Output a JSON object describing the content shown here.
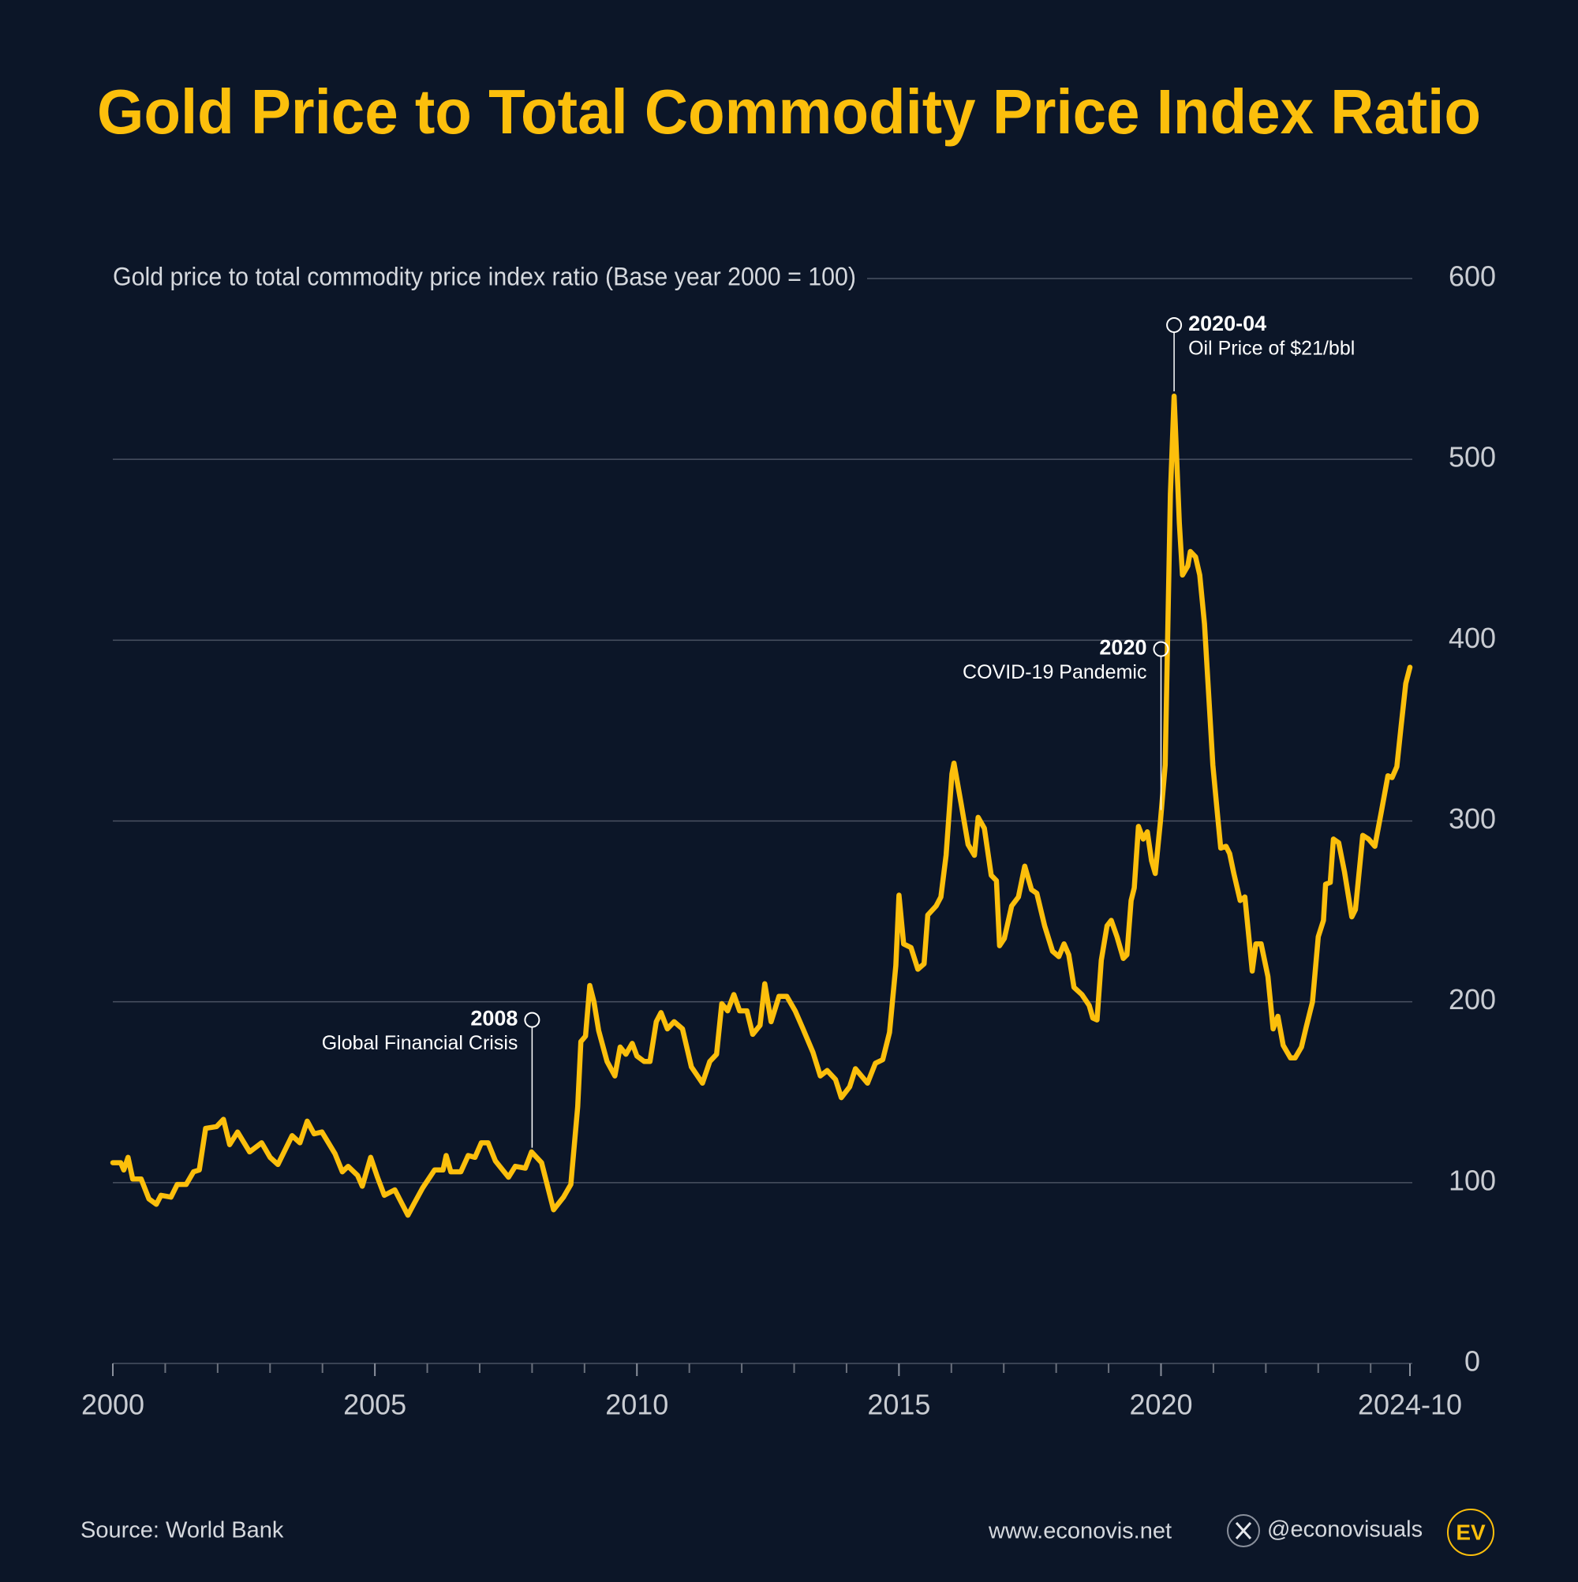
{
  "chart_data": {
    "type": "line",
    "title": "Gold Price to Total Commodity Price Index Ratio",
    "subtitle": "Gold price to total commodity price index ratio (Base year 2000 = 100)",
    "color": "#fcbf0c",
    "grid": true,
    "xlim": [
      2000,
      2024.75
    ],
    "xticks": [
      2000,
      2005,
      2010,
      2015,
      2020,
      {
        "value": 2024.75,
        "label": "2024-10"
      }
    ],
    "xminorticks": [
      2001,
      2002,
      2003,
      2004,
      2006,
      2007,
      2008,
      2009,
      2011,
      2012,
      2013,
      2014,
      2016,
      2017,
      2018,
      2019,
      2021,
      2022,
      2023,
      2024
    ],
    "ylim": [
      0,
      600
    ],
    "yticks": [
      0,
      100,
      200,
      300,
      400,
      500,
      600
    ],
    "x": [
      2000.0,
      2000.15,
      2000.21,
      2000.29,
      2000.38,
      2000.54,
      2000.69,
      2000.83,
      2000.92,
      2001.11,
      2001.23,
      2001.4,
      2001.54,
      2001.65,
      2001.77,
      2001.98,
      2002.11,
      2002.23,
      2002.38,
      2002.61,
      2002.84,
      2003.0,
      2003.15,
      2003.42,
      2003.57,
      2003.71,
      2003.84,
      2003.99,
      2004.24,
      2004.38,
      2004.49,
      2004.67,
      2004.76,
      2004.92,
      2005.05,
      2005.18,
      2005.38,
      2005.63,
      2005.76,
      2005.91,
      2006.14,
      2006.3,
      2006.36,
      2006.45,
      2006.64,
      2006.78,
      2006.91,
      2007.03,
      2007.16,
      2007.3,
      2007.55,
      2007.68,
      2007.87,
      2007.99,
      2008.18,
      2008.41,
      2008.6,
      2008.74,
      2008.87,
      2008.93,
      2009.02,
      2009.1,
      2009.18,
      2009.27,
      2009.43,
      2009.58,
      2009.68,
      2009.79,
      2009.91,
      2010.0,
      2010.14,
      2010.25,
      2010.37,
      2010.46,
      2010.58,
      2010.71,
      2010.87,
      2011.04,
      2011.25,
      2011.39,
      2011.52,
      2011.62,
      2011.73,
      2011.85,
      2011.96,
      2012.1,
      2012.21,
      2012.35,
      2012.44,
      2012.56,
      2012.71,
      2012.86,
      2013.02,
      2013.17,
      2013.36,
      2013.5,
      2013.63,
      2013.79,
      2013.9,
      2014.06,
      2014.17,
      2014.4,
      2014.55,
      2014.69,
      2014.82,
      2014.94,
      2015.0,
      2015.09,
      2015.23,
      2015.36,
      2015.48,
      2015.55,
      2015.71,
      2015.8,
      2015.9,
      2016.01,
      2016.05,
      2016.19,
      2016.32,
      2016.44,
      2016.51,
      2016.63,
      2016.76,
      2016.86,
      2016.92,
      2017.01,
      2017.15,
      2017.28,
      2017.4,
      2017.53,
      2017.63,
      2017.78,
      2017.93,
      2018.05,
      2018.15,
      2018.24,
      2018.34,
      2018.49,
      2018.63,
      2018.7,
      2018.78,
      2018.86,
      2018.97,
      2019.05,
      2019.16,
      2019.28,
      2019.35,
      2019.43,
      2019.49,
      2019.57,
      2019.66,
      2019.74,
      2019.82,
      2019.89,
      2019.99,
      2020.08,
      2020.18,
      2020.25,
      2020.35,
      2020.41,
      2020.51,
      2020.56,
      2020.66,
      2020.74,
      2020.83,
      2020.99,
      2021.08,
      2021.14,
      2021.24,
      2021.31,
      2021.39,
      2021.51,
      2021.6,
      2021.74,
      2021.81,
      2021.91,
      2022.04,
      2022.14,
      2022.23,
      2022.33,
      2022.47,
      2022.56,
      2022.68,
      2022.77,
      2022.89,
      2023.0,
      2023.1,
      2023.14,
      2023.23,
      2023.29,
      2023.39,
      2023.5,
      2023.64,
      2023.71,
      2023.85,
      2023.96,
      2024.08,
      2024.21,
      2024.33,
      2024.41,
      2024.5,
      2024.58,
      2024.67,
      2024.75
    ],
    "values": [
      111,
      111,
      107,
      114,
      102,
      102,
      91,
      88,
      93,
      92,
      99,
      99,
      106,
      107,
      130,
      131,
      135,
      121,
      128,
      117,
      122,
      114,
      110,
      126,
      122,
      134,
      127,
      128,
      116,
      106,
      109,
      104,
      98,
      114,
      103,
      93,
      96,
      82,
      89,
      97,
      107,
      107,
      115,
      106,
      106,
      115,
      114,
      122,
      122,
      112,
      103,
      109,
      108,
      117,
      111,
      85,
      92,
      99,
      142,
      178,
      181,
      209,
      200,
      184,
      167,
      159,
      175,
      171,
      177,
      170,
      167,
      167,
      189,
      194,
      185,
      189,
      185,
      164,
      155,
      167,
      171,
      199,
      195,
      204,
      195,
      195,
      182,
      187,
      210,
      189,
      203,
      203,
      195,
      185,
      172,
      159,
      162,
      157,
      147,
      153,
      163,
      155,
      166,
      168,
      183,
      220,
      259,
      232,
      230,
      218,
      221,
      248,
      253,
      258,
      281,
      326,
      332,
      309,
      287,
      281,
      302,
      296,
      270,
      267,
      231,
      235,
      253,
      258,
      275,
      262,
      260,
      242,
      228,
      225,
      232,
      226,
      208,
      204,
      198,
      191,
      190,
      223,
      242,
      245,
      236,
      224,
      226,
      256,
      263,
      297,
      290,
      294,
      278,
      271,
      300,
      331,
      481,
      535,
      465,
      436,
      441,
      449,
      446,
      436,
      409,
      331,
      303,
      285,
      286,
      282,
      271,
      256,
      258,
      217,
      232,
      232,
      214,
      185,
      192,
      176,
      169,
      169,
      175,
      186,
      200,
      236,
      245,
      265,
      266,
      290,
      288,
      272,
      247,
      251,
      292,
      290,
      286,
      306,
      325,
      324,
      330,
      352,
      376,
      385
    ],
    "annotations": [
      {
        "label": "2008",
        "text": "Global Financial Crisis",
        "x": 2008
      },
      {
        "label": "2020",
        "text": "COVID-19 Pandemic",
        "x": 2020
      },
      {
        "label": "2020-04",
        "text": "Oil Price of $21/bbl",
        "x": 2020.25
      }
    ]
  },
  "footer": {
    "source": "Source: World Bank",
    "website": "www.econovis.net",
    "handle": "@econovisuals",
    "logo": "EV"
  }
}
